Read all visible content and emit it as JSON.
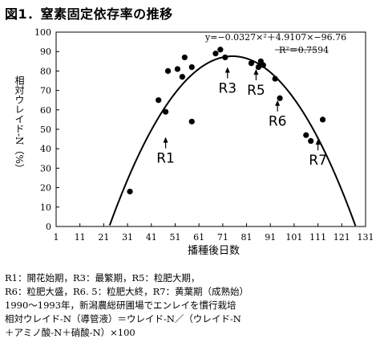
{
  "figure": {
    "title": "図1．窒素固定依存率の推移",
    "notes": [
      "R1：開花始期，R3：最繁期，R5：粒肥大期，",
      "R6：粒肥大盛，R6. 5：粒肥大終，R7：黄葉期（成熟始）",
      "1990～1993年，新潟農総研圃場でエンレイを慣行栽培",
      "相対ウレイド-N（導管液）＝ウレイド-N／（ウレイド-N",
      "＋アミノ酸-N＋硝酸-N）×100"
    ]
  },
  "chart_data": {
    "type": "scatter",
    "xlabel": "播種後日数",
    "ylabel": "相対ウレイド-N（%）",
    "xlim": [
      1,
      131
    ],
    "ylim": [
      0,
      100
    ],
    "xticks": [
      1,
      11,
      21,
      31,
      41,
      51,
      61,
      71,
      81,
      91,
      101,
      111,
      121,
      131
    ],
    "yticks": [
      0,
      10,
      20,
      30,
      40,
      50,
      60,
      70,
      80,
      90,
      100
    ],
    "grid": false,
    "points": [
      {
        "x": 32,
        "y": 18
      },
      {
        "x": 44,
        "y": 65
      },
      {
        "x": 47,
        "y": 59
      },
      {
        "x": 48,
        "y": 80
      },
      {
        "x": 52,
        "y": 81
      },
      {
        "x": 54,
        "y": 77
      },
      {
        "x": 55,
        "y": 87
      },
      {
        "x": 58,
        "y": 54
      },
      {
        "x": 58,
        "y": 82
      },
      {
        "x": 68,
        "y": 89
      },
      {
        "x": 70,
        "y": 91
      },
      {
        "x": 72,
        "y": 87
      },
      {
        "x": 83,
        "y": 84
      },
      {
        "x": 86,
        "y": 82
      },
      {
        "x": 87,
        "y": 85
      },
      {
        "x": 88,
        "y": 83
      },
      {
        "x": 93,
        "y": 76
      },
      {
        "x": 95,
        "y": 66
      },
      {
        "x": 106,
        "y": 47
      },
      {
        "x": 108,
        "y": 44
      },
      {
        "x": 113,
        "y": 55
      }
    ],
    "trendline": {
      "a": -0.0327,
      "b": 4.9107,
      "c": -96.76
    },
    "equation_text": "y=−0.0327×²＋4.9107×−96.76",
    "r2_text": "R²＝0.7594",
    "annotations": [
      {
        "label": "R1",
        "x": 47,
        "y": 46
      },
      {
        "label": "R3",
        "x": 73,
        "y": 82
      },
      {
        "label": "R5",
        "x": 85,
        "y": 81
      },
      {
        "label": "R6",
        "x": 94,
        "y": 65
      },
      {
        "label": "R7",
        "x": 111,
        "y": 45
      }
    ]
  }
}
